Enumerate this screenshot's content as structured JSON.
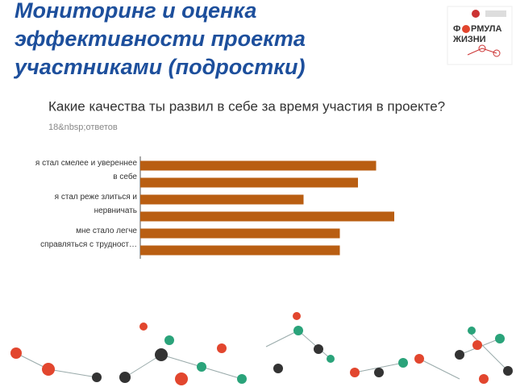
{
  "slide_title": "Мониторинг и оценка эффективности проекта участниками (подростки)",
  "logo": {
    "part1": "Ф",
    "part2": "РМУЛА",
    "line2": "ЖИЗНИ"
  },
  "chart_data": {
    "type": "barh",
    "title": "Какие качества ты развил в себе за время участия в проекте?",
    "subtitle": "18&nbsp;ответов",
    "categories": [
      "я стал смелее и увереннее в себе",
      null,
      "я стал реже злиться и нервничать",
      null,
      "мне стало легче справляться с трудност…",
      null
    ],
    "values": [
      13,
      12,
      9,
      14,
      11,
      11
    ],
    "color": "#b95e12",
    "xlim": [
      0,
      15
    ]
  }
}
